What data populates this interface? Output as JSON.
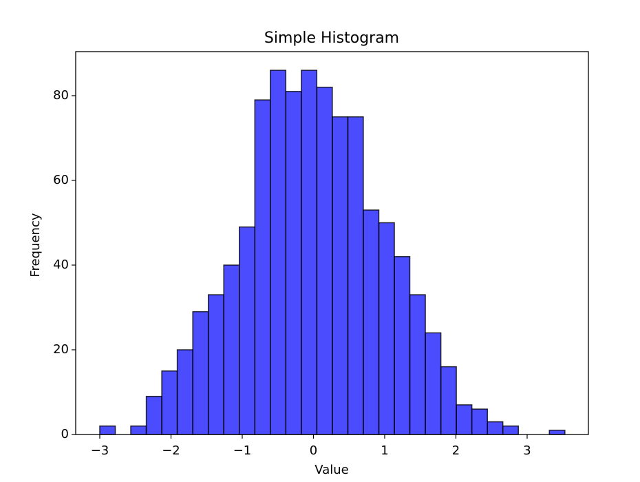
{
  "chart_data": {
    "type": "histogram",
    "title": "Simple Histogram",
    "x_label": "Value",
    "y_label": "Frequency",
    "bins": [
      -3.0,
      -2.782,
      -2.565,
      -2.347,
      -2.129,
      -1.912,
      -1.694,
      -1.476,
      -1.259,
      -1.041,
      -0.823,
      -0.606,
      -0.388,
      -0.17,
      0.047,
      0.265,
      0.483,
      0.7,
      0.918,
      1.136,
      1.353,
      1.571,
      1.789,
      2.006,
      2.224,
      2.442,
      2.659,
      2.877,
      3.095,
      3.312,
      3.53
    ],
    "values": [
      2,
      0,
      2,
      9,
      15,
      20,
      29,
      33,
      40,
      49,
      79,
      86,
      81,
      86,
      82,
      75,
      75,
      53,
      50,
      42,
      33,
      24,
      16,
      7,
      6,
      3,
      2,
      0,
      0,
      1
    ],
    "color": "blue",
    "alpha": 0.7,
    "edgecolor": "black",
    "xlim": [
      -3.338,
      3.86
    ],
    "ylim": [
      0,
      90.4
    ],
    "xticks": [
      {
        "value": -3,
        "label": "−3"
      },
      {
        "value": -2,
        "label": "−2"
      },
      {
        "value": -1,
        "label": "−1"
      },
      0,
      1,
      2,
      3
    ],
    "yticks": [
      0,
      20,
      40,
      60,
      80
    ],
    "grid": false
  }
}
